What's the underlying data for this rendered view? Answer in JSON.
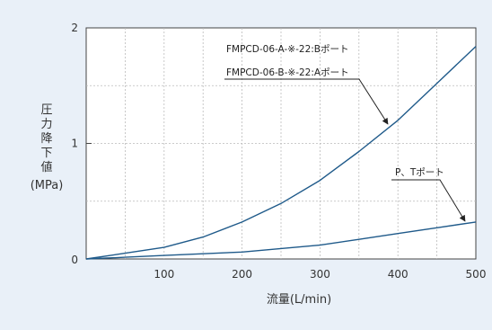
{
  "chart_data": {
    "type": "line",
    "xlabel": "流量(L/min)",
    "ylabel_lines": [
      "圧",
      "力",
      "降",
      "下",
      "値",
      "(MPa)"
    ],
    "xlim": [
      0,
      500
    ],
    "ylim": [
      0,
      2
    ],
    "x_ticks": [
      100,
      200,
      300,
      400,
      500
    ],
    "x_tick_labels": [
      "100",
      "200",
      "300",
      "400",
      "500"
    ],
    "y_ticks": [
      0,
      1,
      2
    ],
    "y_tick_labels": [
      "0",
      "1",
      "2"
    ],
    "origin_label": "0",
    "grid": true,
    "colors": {
      "background": "#e9f0f8",
      "plot_area": "#ffffff",
      "grid": "#bbbbbb",
      "series_line": "#1f5a8a",
      "axis": "#444444",
      "text": "#333333"
    },
    "series": [
      {
        "x": [
          0,
          50,
          100,
          150,
          200,
          250,
          300,
          350,
          400,
          450,
          500
        ],
        "y": [
          0,
          0.05,
          0.1,
          0.19,
          0.32,
          0.48,
          0.68,
          0.93,
          1.2,
          1.52,
          1.84
        ]
      },
      {
        "x": [
          0,
          50,
          100,
          150,
          200,
          250,
          300,
          350,
          400,
          450,
          500
        ],
        "y": [
          0,
          0.015,
          0.03,
          0.045,
          0.06,
          0.09,
          0.12,
          0.17,
          0.22,
          0.27,
          0.32
        ]
      }
    ],
    "annotations": [
      {
        "text": "FMPCD-06-A-※-22:Bポート"
      },
      {
        "text": "FMPCD-06-B-※-22:Aポート"
      },
      {
        "text": "P、Tポート"
      }
    ]
  }
}
